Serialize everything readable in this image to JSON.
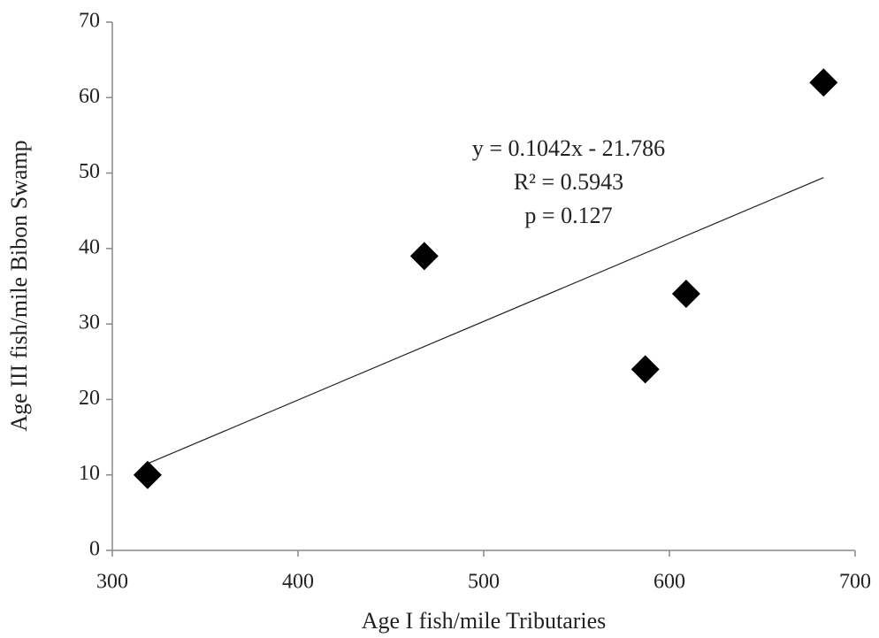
{
  "chart_data": {
    "type": "scatter",
    "x_label": "Age I fish/mile Tributaries",
    "y_label": "Age III fish/mile Bibon Swamp",
    "x": [
      319,
      468,
      587,
      609,
      683
    ],
    "values": [
      10,
      39,
      24,
      34,
      62
    ],
    "color": "#000000",
    "trendline": {
      "x": [
        319,
        683
      ],
      "values": [
        11.5,
        49.4
      ],
      "color": "#222222"
    },
    "annotations": [
      "y = 0.1042x - 21.786",
      "R² = 0.5943",
      "p = 0.127"
    ],
    "xlim": [
      300,
      700
    ],
    "xticks": [
      300,
      400,
      500,
      600,
      700
    ],
    "ylim": [
      0,
      70
    ],
    "yticks": [
      0,
      10,
      20,
      30,
      40,
      50,
      60,
      70
    ],
    "grid": false
  }
}
